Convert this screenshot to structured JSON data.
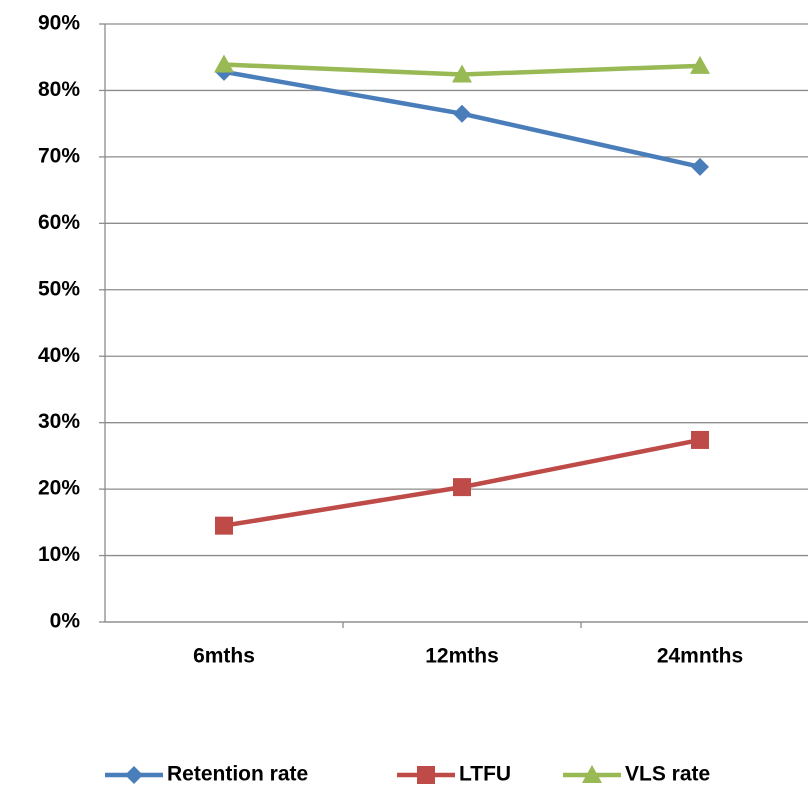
{
  "chart_data": {
    "type": "line",
    "categories": [
      "6mths",
      "12mths",
      "24mnths"
    ],
    "series": [
      {
        "name": "Retention rate",
        "color": "#4a7ebb",
        "marker": "diamond",
        "values": [
          82.8,
          76.5,
          68.5
        ]
      },
      {
        "name": "LTFU",
        "color": "#be4b48",
        "marker": "square",
        "values": [
          14.5,
          20.3,
          27.4
        ]
      },
      {
        "name": "VLS rate",
        "color": "#98b954",
        "marker": "triangle",
        "values": [
          83.9,
          82.4,
          83.7
        ]
      }
    ],
    "ylim": [
      0,
      90
    ],
    "yticks": [
      {
        "value": 0,
        "label": "0%"
      },
      {
        "value": 10,
        "label": "10%"
      },
      {
        "value": 20,
        "label": "20%"
      },
      {
        "value": 30,
        "label": "30%"
      },
      {
        "value": 40,
        "label": "40%"
      },
      {
        "value": 50,
        "label": "50%"
      },
      {
        "value": 60,
        "label": "60%"
      },
      {
        "value": 70,
        "label": "70%"
      },
      {
        "value": 80,
        "label": "80%"
      },
      {
        "value": 90,
        "label": "90%"
      }
    ],
    "grid": true,
    "legend": "bottom"
  }
}
